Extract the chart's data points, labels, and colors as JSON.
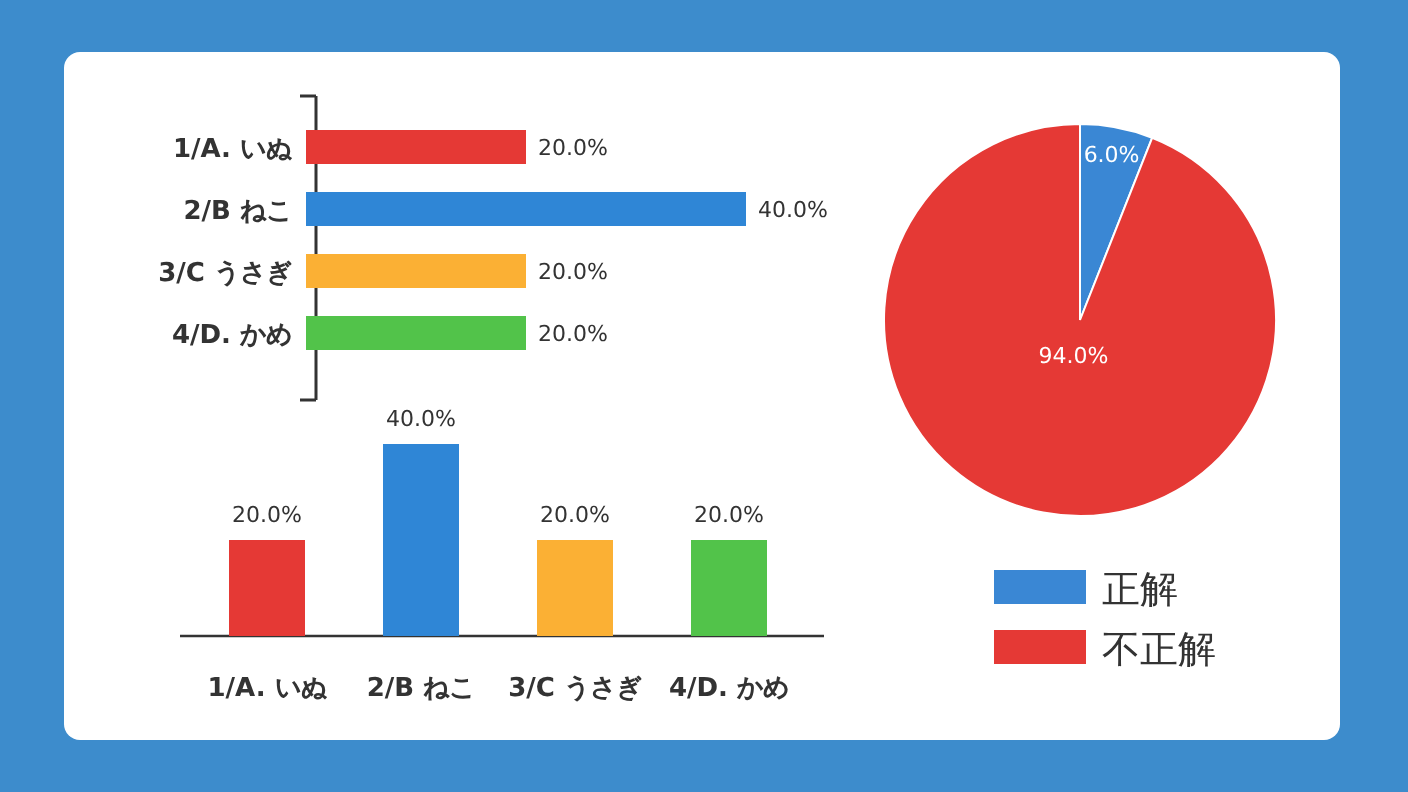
{
  "chart_data": [
    {
      "type": "bar",
      "orientation": "horizontal",
      "categories": [
        "1/A. いぬ",
        "2/B ねこ",
        "3/C うさぎ",
        "4/D. かめ"
      ],
      "values": [
        20,
        40,
        20,
        20
      ],
      "colors": [
        "#e53935",
        "#2f86d6",
        "#fbb034",
        "#52c34a"
      ],
      "value_labels": [
        "20.0%",
        "40.0%",
        "20.0%",
        "20.0%"
      ]
    },
    {
      "type": "bar",
      "categories": [
        "1/A. いぬ",
        "2/B ねこ",
        "3/C うさぎ",
        "4/D. かめ"
      ],
      "values": [
        20,
        40,
        20,
        20
      ],
      "colors": [
        "#e53935",
        "#2f86d6",
        "#fbb034",
        "#52c34a"
      ],
      "value_labels": [
        "20.0%",
        "40.0%",
        "20.0%",
        "20.0%"
      ]
    },
    {
      "type": "pie",
      "categories": [
        "正解",
        "不正解"
      ],
      "values": [
        6,
        94
      ],
      "colors": [
        "#3a87d4",
        "#e53935"
      ],
      "value_labels": [
        "6.0%",
        "94.0%"
      ],
      "legend": "bottom"
    }
  ]
}
